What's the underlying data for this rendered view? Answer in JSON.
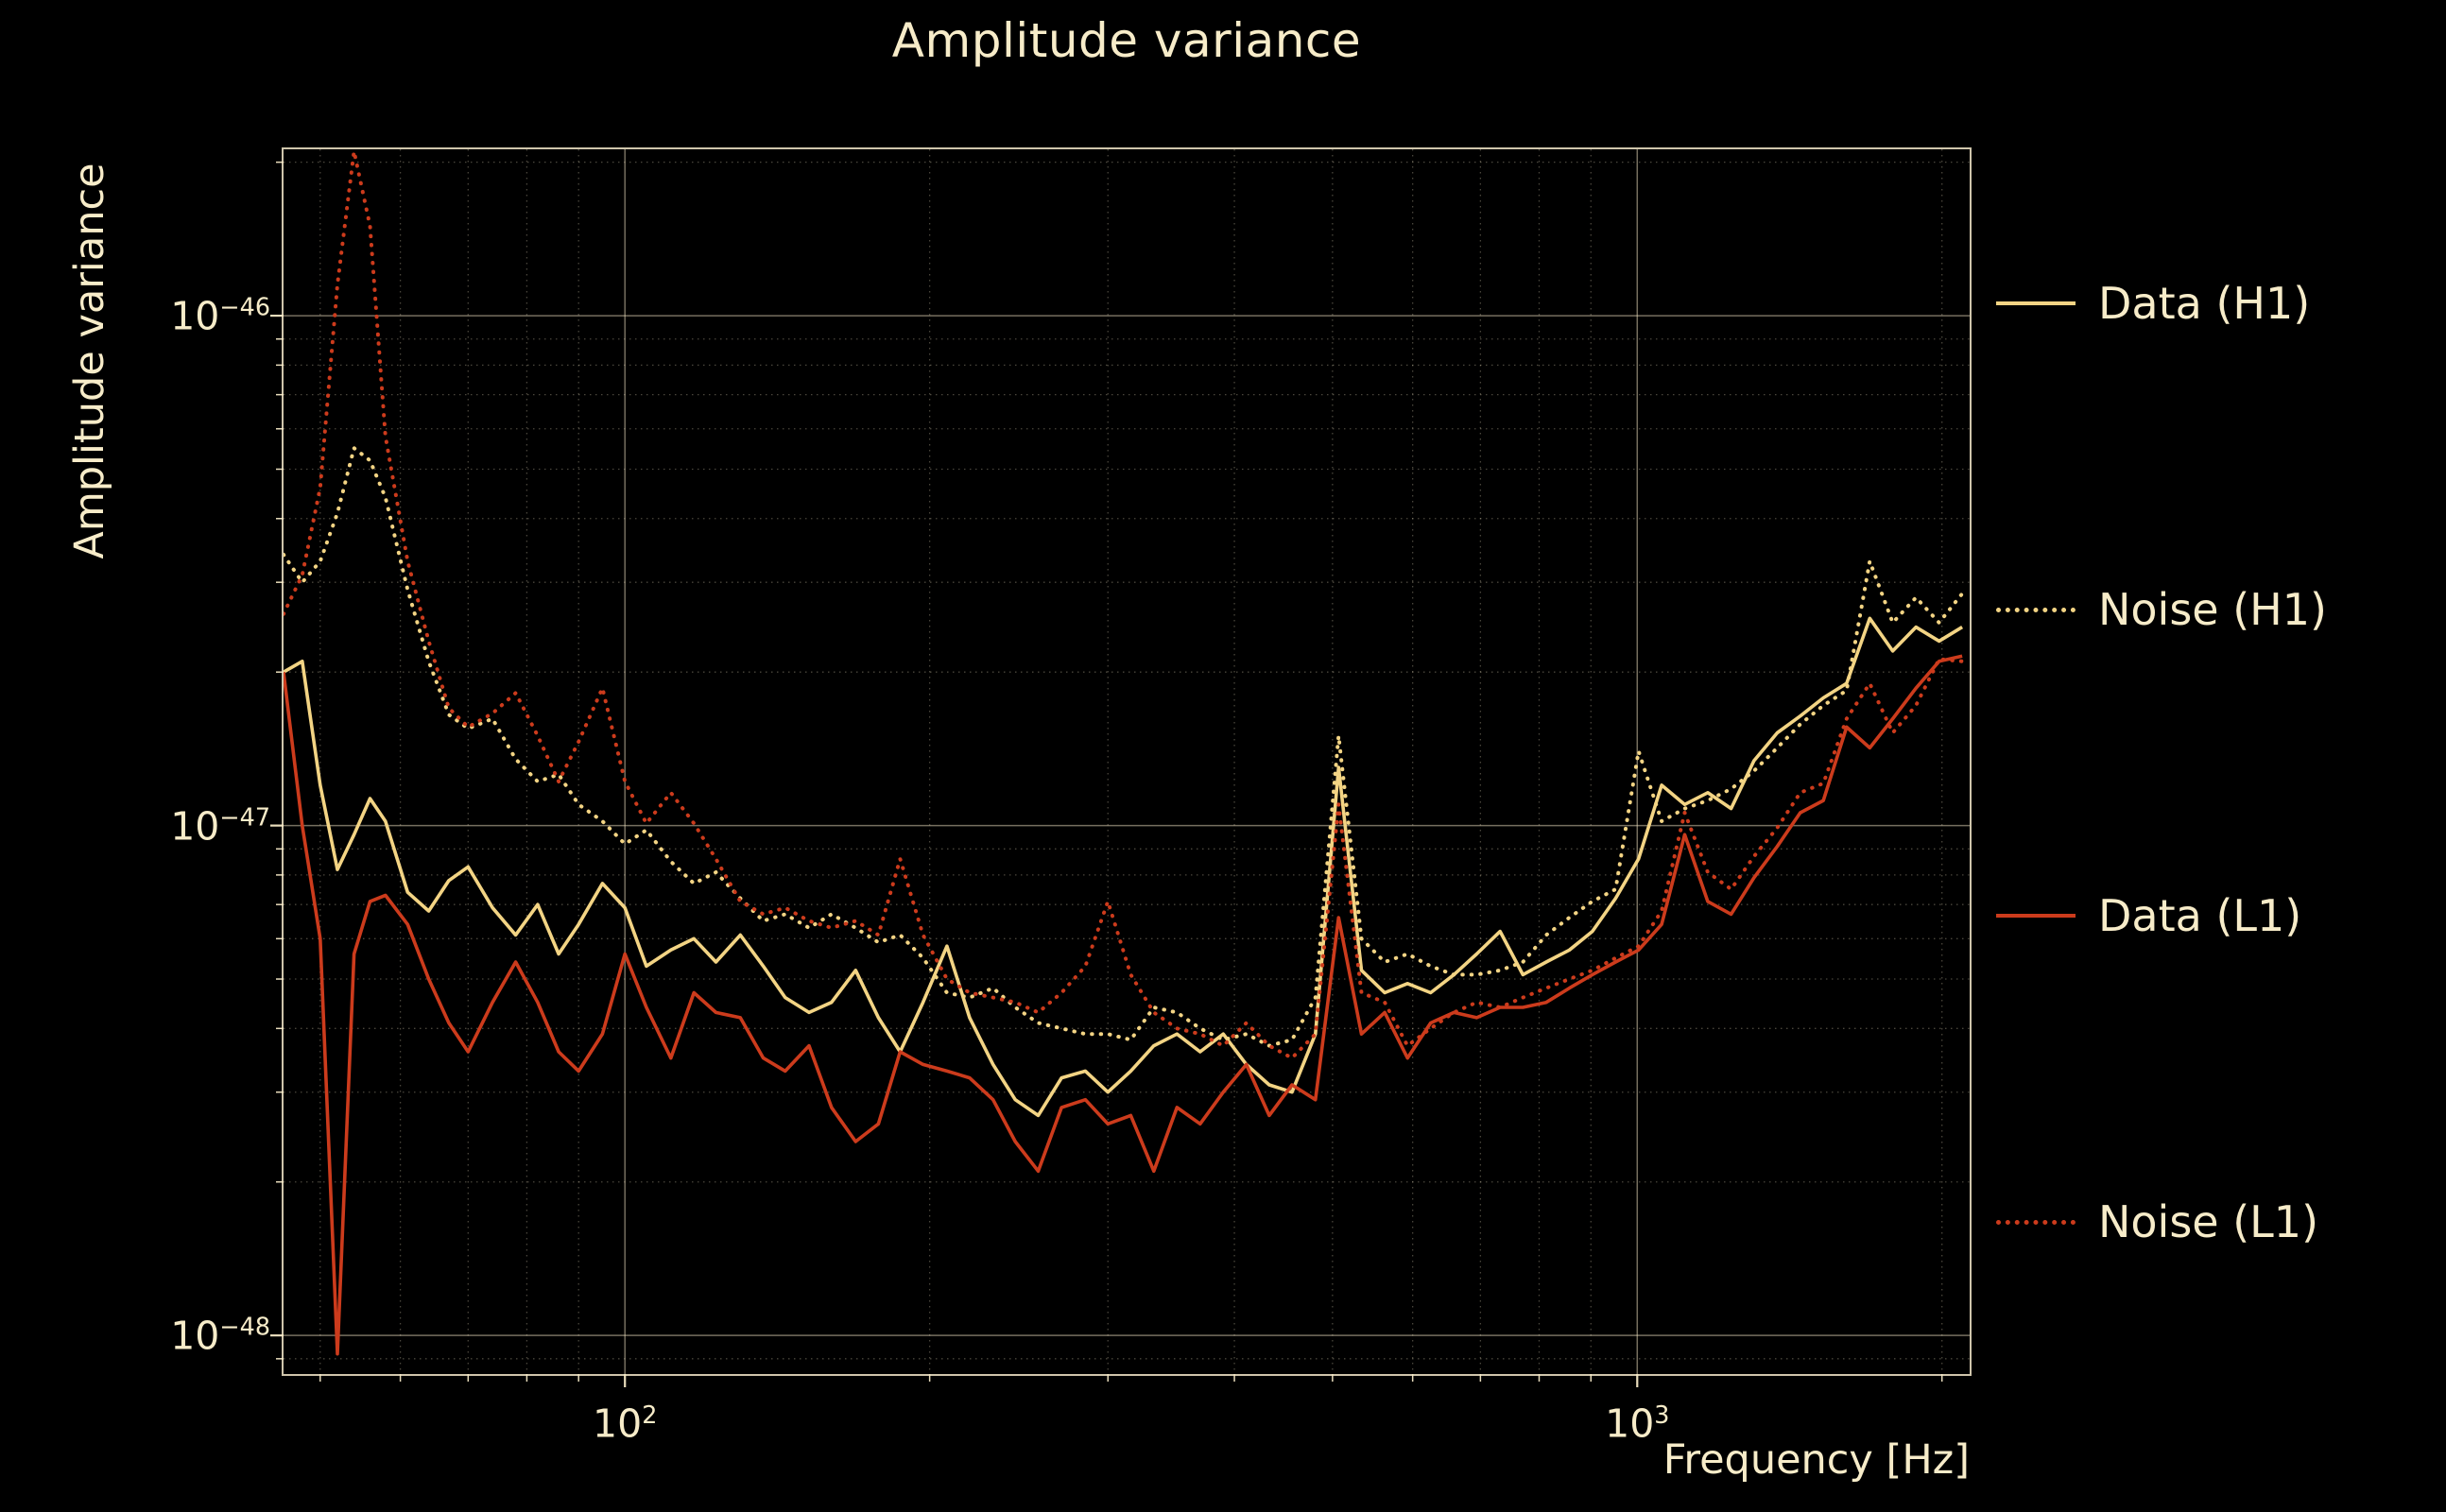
{
  "figure": {
    "background": "#000000",
    "text_color": "#f7ecc9",
    "grid_color": "#f6e9c6",
    "spine_color": "#f3e7c9"
  },
  "chart_data": {
    "type": "line",
    "title": "Amplitude variance",
    "xlabel": "Frequency [Hz]",
    "ylabel": "Amplitude variance",
    "x_axis_scale": "log",
    "y_axis_scale": "log",
    "xlim": [
      46,
      2130
    ],
    "ylim": [
      8.4e-49,
      2.12e-46
    ],
    "grid": "major solid + minor dotted, both axes",
    "legend_position": "outside right, vertically spread",
    "xticks": [
      {
        "value": 100,
        "base": "10",
        "exp": "2"
      },
      {
        "value": 1000,
        "base": "10",
        "exp": "3"
      }
    ],
    "yticks": [
      {
        "value": 1e-46,
        "base": "10",
        "exp": "−46"
      },
      {
        "value": 1e-47,
        "base": "10",
        "exp": "−47"
      },
      {
        "value": 1e-48,
        "base": "10",
        "exp": "−48"
      }
    ],
    "value_unit": 1e-48,
    "frequencies_hz": [
      46,
      48,
      50,
      52,
      54,
      56,
      58,
      61,
      64,
      67,
      70,
      74,
      78,
      82,
      86,
      90,
      95,
      100,
      105,
      111,
      117,
      123,
      130,
      137,
      144,
      152,
      160,
      169,
      178,
      187,
      197,
      208,
      219,
      231,
      243,
      256,
      270,
      285,
      300,
      316,
      333,
      351,
      370,
      390,
      411,
      433,
      456,
      481,
      507,
      534,
      563,
      593,
      625,
      659,
      694,
      732,
      771,
      813,
      857,
      903,
      952,
      1003,
      1057,
      1114,
      1174,
      1238,
      1304,
      1375,
      1449,
      1527,
      1610,
      1697,
      1788,
      1885,
      1987,
      2094
    ],
    "series": [
      {
        "name": "Data (H1)",
        "color": "#f3d484",
        "line_style": "solid",
        "values": [
          20,
          21,
          12,
          8.2,
          9.6,
          11.3,
          10.2,
          7.4,
          6.8,
          7.8,
          8.3,
          6.9,
          6.1,
          7.0,
          5.6,
          6.4,
          7.7,
          6.9,
          5.3,
          5.7,
          6.0,
          5.4,
          6.1,
          5.3,
          4.6,
          4.3,
          4.5,
          5.2,
          4.2,
          3.6,
          4.5,
          5.8,
          4.2,
          3.4,
          2.9,
          2.7,
          3.2,
          3.3,
          3.0,
          3.3,
          3.7,
          3.9,
          3.6,
          3.9,
          3.4,
          3.1,
          3.0,
          3.9,
          13.0,
          5.2,
          4.7,
          4.9,
          4.7,
          5.1,
          5.6,
          6.2,
          5.1,
          5.4,
          5.7,
          6.2,
          7.2,
          8.6,
          12.0,
          11.0,
          11.6,
          10.8,
          13.4,
          15.2,
          16.4,
          17.8,
          19.0,
          25.5,
          22.0,
          24.5,
          23.0,
          24.5
        ]
      },
      {
        "name": "Noise (H1)",
        "color": "#f3d484",
        "line_style": "dotted",
        "values": [
          34,
          30,
          33,
          41,
          55,
          52,
          44,
          29,
          21,
          16.5,
          15.5,
          16.2,
          13.5,
          12.2,
          12.6,
          11.0,
          10.2,
          9.2,
          9.8,
          8.5,
          7.7,
          8.1,
          7.2,
          6.5,
          6.7,
          6.3,
          6.7,
          6.3,
          5.9,
          6.1,
          5.5,
          4.7,
          4.6,
          4.8,
          4.4,
          4.1,
          4.0,
          3.9,
          3.9,
          3.8,
          4.4,
          4.3,
          4.0,
          3.8,
          3.9,
          3.7,
          3.8,
          4.6,
          15.0,
          6.0,
          5.4,
          5.6,
          5.3,
          5.1,
          5.1,
          5.2,
          5.4,
          6.1,
          6.6,
          7.1,
          7.5,
          14.0,
          10.2,
          10.8,
          11.2,
          11.8,
          12.8,
          14.2,
          15.8,
          17.2,
          18.4,
          33.0,
          25.0,
          28.0,
          25.0,
          28.5
        ]
      },
      {
        "name": "Data (L1)",
        "color": "#cc3b1c",
        "line_style": "solid",
        "values": [
          20,
          10,
          6.0,
          0.92,
          5.6,
          7.1,
          7.3,
          6.4,
          5.0,
          4.1,
          3.6,
          4.5,
          5.4,
          4.5,
          3.6,
          3.3,
          3.9,
          5.6,
          4.4,
          3.5,
          4.7,
          4.3,
          4.2,
          3.5,
          3.3,
          3.7,
          2.8,
          2.4,
          2.6,
          3.6,
          3.4,
          3.3,
          3.2,
          2.9,
          2.4,
          2.1,
          2.8,
          2.9,
          2.6,
          2.7,
          2.1,
          2.8,
          2.6,
          3.0,
          3.4,
          2.7,
          3.1,
          2.9,
          6.6,
          3.9,
          4.3,
          3.5,
          4.1,
          4.3,
          4.2,
          4.4,
          4.4,
          4.5,
          4.8,
          5.1,
          5.4,
          5.7,
          6.4,
          9.6,
          7.1,
          6.7,
          7.9,
          9.1,
          10.6,
          11.2,
          15.6,
          14.2,
          16.2,
          18.6,
          21.0,
          21.5
        ]
      },
      {
        "name": "Noise (L1)",
        "color": "#cc3b1c",
        "line_style": "dotted",
        "values": [
          26,
          31,
          46,
          115,
          210,
          150,
          58,
          33,
          23,
          17,
          15.6,
          16.6,
          18.2,
          15.0,
          12.2,
          14.6,
          18.6,
          12.2,
          10.1,
          11.6,
          10.1,
          8.6,
          7.1,
          6.7,
          6.9,
          6.5,
          6.3,
          6.5,
          6.1,
          8.6,
          6.1,
          5.0,
          4.7,
          4.6,
          4.5,
          4.3,
          4.7,
          5.3,
          7.1,
          5.1,
          4.3,
          4.0,
          3.9,
          3.7,
          4.1,
          3.7,
          3.5,
          3.9,
          11.0,
          4.7,
          4.5,
          3.7,
          4.0,
          4.3,
          4.5,
          4.4,
          4.6,
          4.8,
          5.0,
          5.2,
          5.5,
          5.8,
          6.8,
          10.6,
          8.1,
          7.5,
          8.7,
          9.9,
          11.6,
          12.1,
          16.2,
          19.0,
          15.2,
          17.2,
          21.2,
          21.0
        ]
      }
    ]
  }
}
